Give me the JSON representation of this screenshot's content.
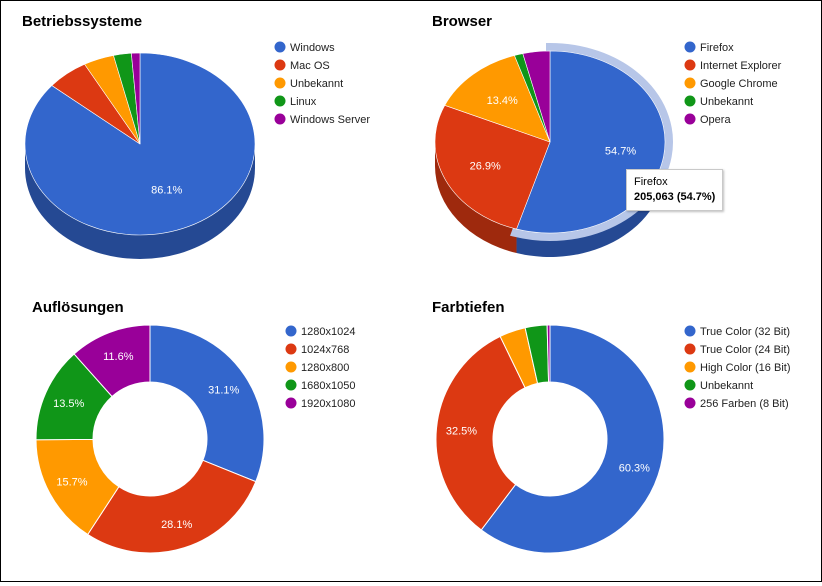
{
  "chart_data": [
    {
      "type": "pie",
      "style": "3d",
      "title": "Betriebssysteme",
      "categories": [
        "Windows",
        "Mac OS",
        "Unbekannt",
        "Linux",
        "Windows Server"
      ],
      "values": [
        86.1,
        5.9,
        4.3,
        2.5,
        1.2
      ],
      "labels": [
        "86.1%",
        "",
        "",
        "",
        ""
      ],
      "colors": [
        "#3366cc",
        "#dc3912",
        "#ff9900",
        "#109618",
        "#990099"
      ],
      "legend": "right"
    },
    {
      "type": "pie",
      "style": "3d",
      "title": "Browser",
      "categories": [
        "Firefox",
        "Internet Explorer",
        "Google Chrome",
        "Unbekannt",
        "Opera"
      ],
      "values": [
        54.7,
        26.9,
        13.4,
        1.2,
        3.8
      ],
      "labels": [
        "54.7%",
        "26.9%",
        "13.4%",
        "",
        ""
      ],
      "colors": [
        "#3366cc",
        "#dc3912",
        "#ff9900",
        "#109618",
        "#990099"
      ],
      "legend": "right",
      "highlighted": 0,
      "tooltip": {
        "name": "Firefox",
        "value": "205,063 (54.7%)"
      }
    },
    {
      "type": "pie",
      "style": "donut",
      "title": "Auflösungen",
      "categories": [
        "1280x1024",
        "1024x768",
        "1280x800",
        "1680x1050",
        "1920x1080"
      ],
      "values": [
        31.1,
        28.1,
        15.7,
        13.5,
        11.6
      ],
      "labels": [
        "31.1%",
        "28.1%",
        "15.7%",
        "13.5%",
        "11.6%"
      ],
      "colors": [
        "#3366cc",
        "#dc3912",
        "#ff9900",
        "#109618",
        "#990099"
      ],
      "legend": "right"
    },
    {
      "type": "pie",
      "style": "donut",
      "title": "Farbtiefen",
      "categories": [
        "True Color (32 Bit)",
        "True Color (24 Bit)",
        "High Color (16 Bit)",
        "Unbekannt",
        "256 Farben (8 Bit)"
      ],
      "values": [
        60.3,
        32.5,
        3.7,
        3.1,
        0.4
      ],
      "labels": [
        "60.3%",
        "32.5%",
        "",
        "",
        ""
      ],
      "colors": [
        "#3366cc",
        "#dc3912",
        "#ff9900",
        "#109618",
        "#990099"
      ],
      "legend": "right"
    }
  ]
}
